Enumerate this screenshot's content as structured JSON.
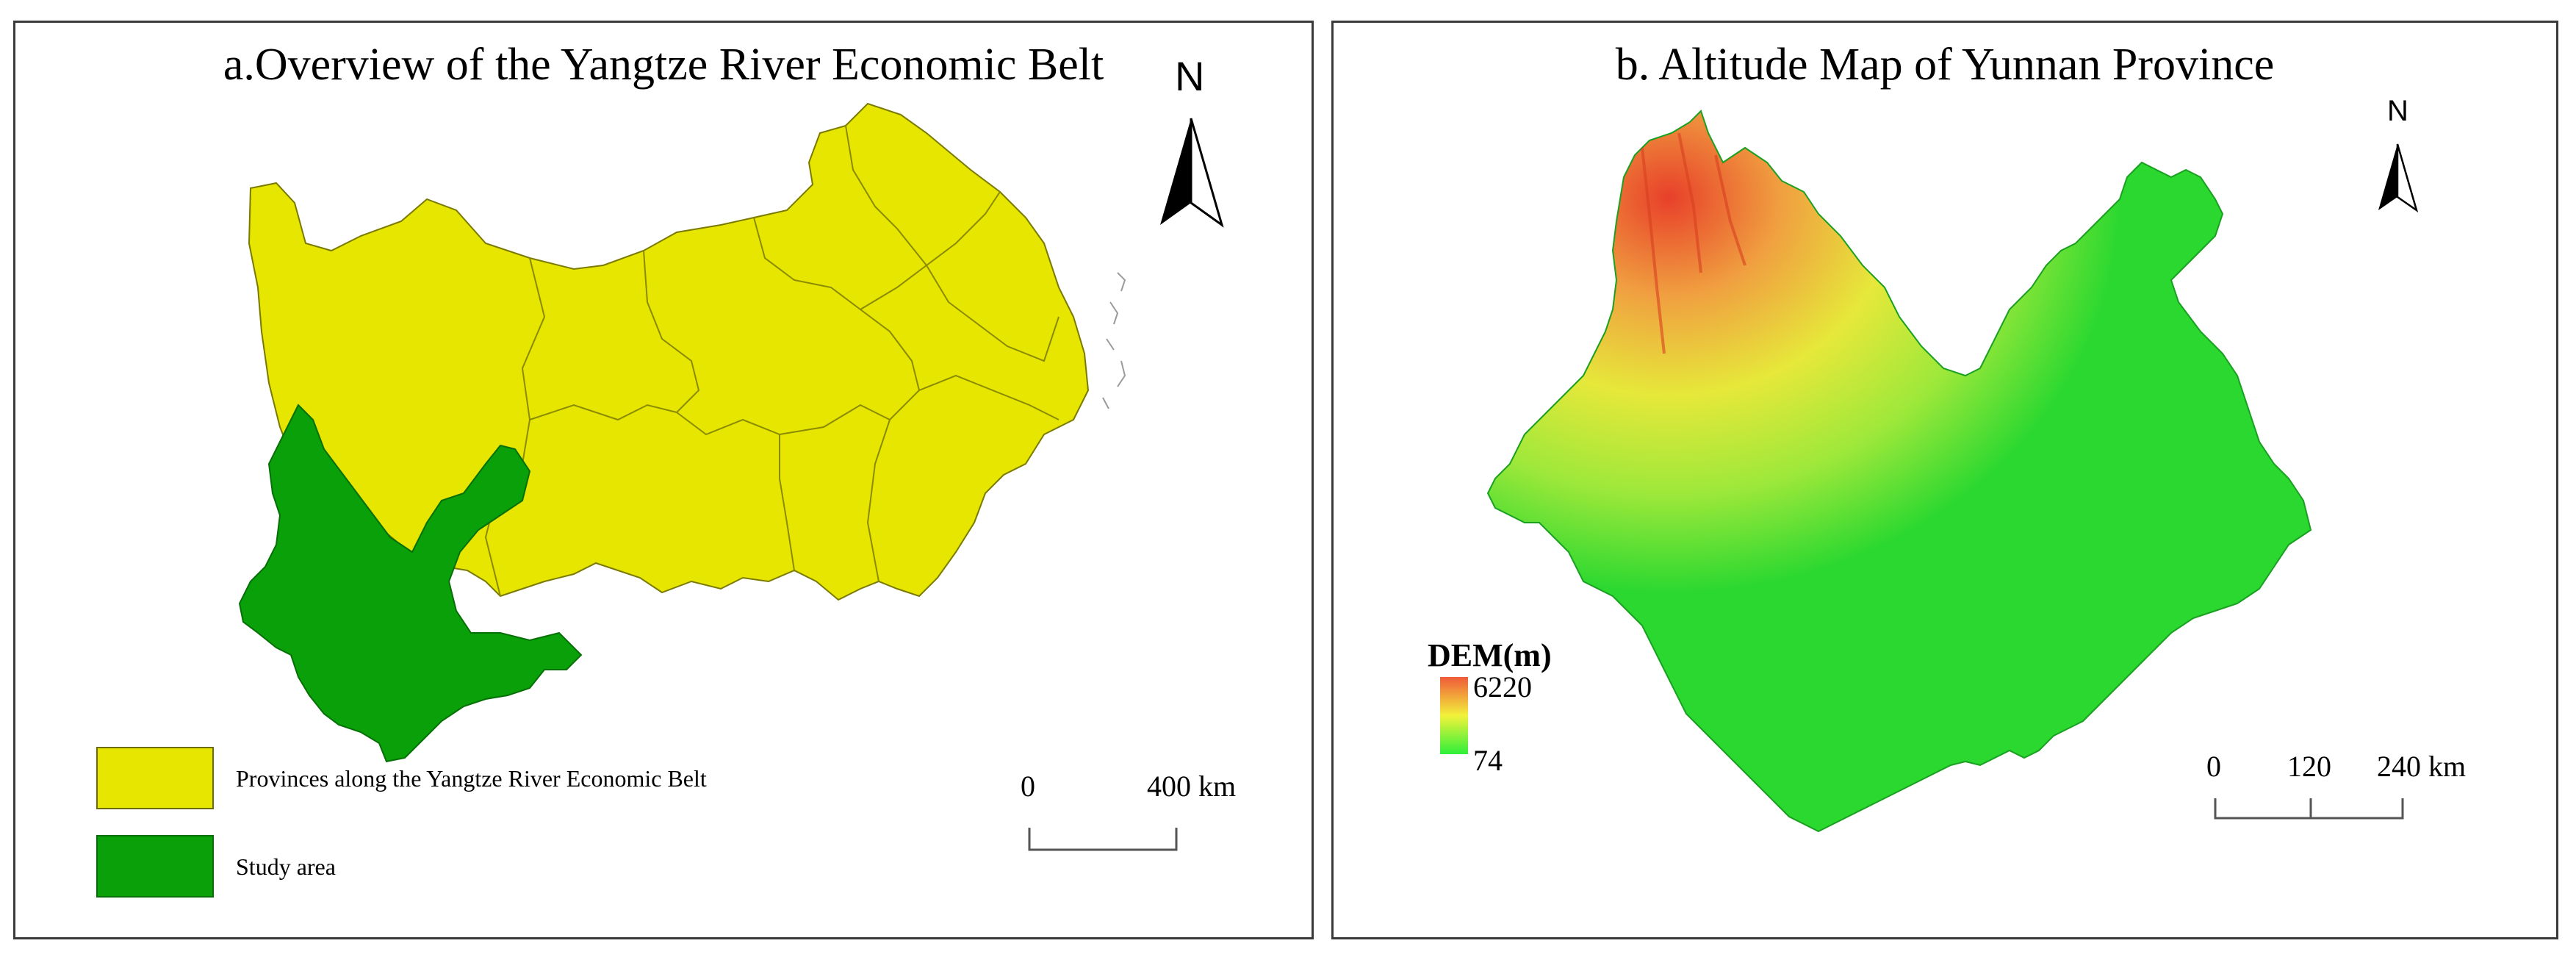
{
  "panel_a": {
    "title": "a.Overview of the Yangtze River Economic Belt",
    "north_label": "N",
    "legend": [
      {
        "label": "Provinces along the Yangtze River Economic Belt",
        "color": "#e6e600"
      },
      {
        "label": "Study area",
        "color": "#0aa00a"
      }
    ],
    "scale": {
      "start": "0",
      "end": "400 km"
    }
  },
  "panel_b": {
    "title": "b. Altitude Map of Yunnan Province",
    "north_label": "N",
    "legend": {
      "title": "DEM(m)",
      "max": "6220",
      "min": "74",
      "max_color": "#f05a3a",
      "mid_color": "#f2f23a",
      "min_color": "#2ef03a"
    },
    "scale": {
      "start": "0",
      "mid": "120",
      "end": "240 km"
    }
  }
}
